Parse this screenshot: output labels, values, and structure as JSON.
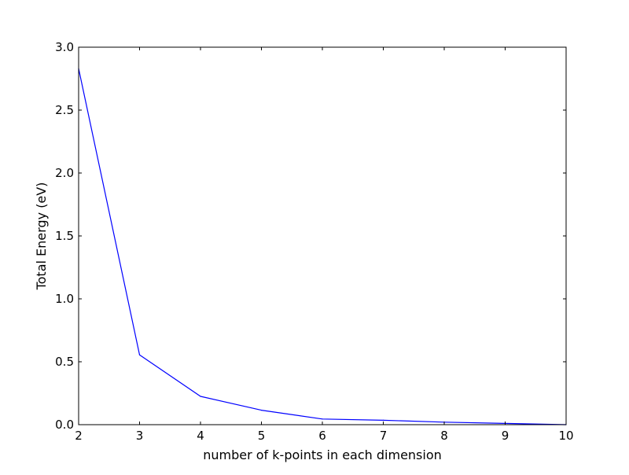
{
  "chart_data": {
    "type": "line",
    "title": "",
    "xlabel": "number of k-points in each dimension",
    "ylabel": "Total Energy (eV)",
    "xlim": [
      2,
      10
    ],
    "ylim": [
      0.0,
      3.0
    ],
    "xticks": [
      2,
      3,
      4,
      5,
      6,
      7,
      8,
      9,
      10
    ],
    "xtick_labels": [
      "2",
      "3",
      "4",
      "5",
      "6",
      "7",
      "8",
      "9",
      "10"
    ],
    "yticks": [
      0.0,
      0.5,
      1.0,
      1.5,
      2.0,
      2.5,
      3.0
    ],
    "ytick_labels": [
      "0.0",
      "0.5",
      "1.0",
      "1.5",
      "2.0",
      "2.5",
      "3.0"
    ],
    "grid": false,
    "legend": "none",
    "series": [
      {
        "color": "#0000ff",
        "x": [
          2,
          3,
          4,
          5,
          6,
          7,
          8,
          9,
          10
        ],
        "y": [
          2.83,
          0.555,
          0.225,
          0.115,
          0.045,
          0.035,
          0.02,
          0.01,
          0.0
        ]
      }
    ]
  }
}
